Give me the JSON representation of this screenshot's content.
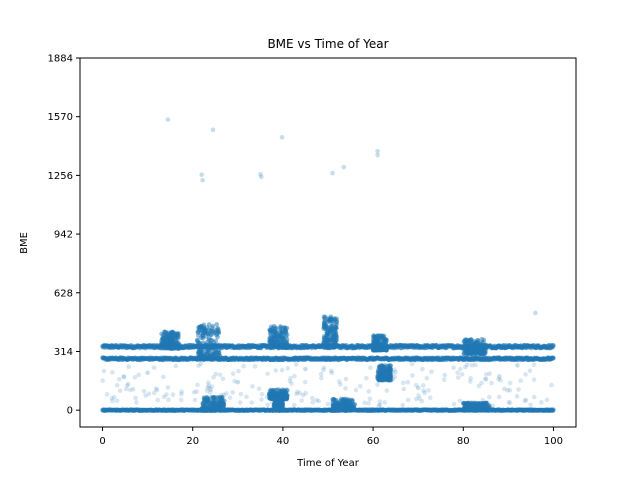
{
  "chart_data": {
    "type": "scatter",
    "title": "BME vs Time of Year",
    "xlabel": "Time of Year",
    "ylabel": "BME",
    "xlim": [
      -5,
      105
    ],
    "ylim": [
      -90,
      1884
    ],
    "xticks": [
      0,
      20,
      40,
      60,
      80,
      100
    ],
    "yticks": [
      0,
      314,
      628,
      942,
      1256,
      1570,
      1884
    ],
    "xtick_labels": [
      "0",
      "20",
      "40",
      "60",
      "80",
      "100"
    ],
    "ytick_labels": [
      "0",
      "314",
      "628",
      "942",
      "1256",
      "1570",
      "1884"
    ],
    "grid": false,
    "legend": "none",
    "marker_color": "#1f77b4",
    "bands": [
      {
        "name": "upper band",
        "y": 340,
        "x_range": [
          0,
          100
        ],
        "spread": 8
      },
      {
        "name": "middle band",
        "y": 275,
        "x_range": [
          0,
          100
        ],
        "spread": 6
      },
      {
        "name": "zero band",
        "y": 0,
        "x_range": [
          0,
          100
        ],
        "spread": 3
      }
    ],
    "clusters": [
      {
        "x_range": [
          13,
          17
        ],
        "y_range": [
          330,
          420
        ]
      },
      {
        "x_range": [
          21,
          26
        ],
        "y_range": [
          280,
          460
        ]
      },
      {
        "x_range": [
          22,
          27
        ],
        "y_range": [
          0,
          70
        ]
      },
      {
        "x_range": [
          37,
          41
        ],
        "y_range": [
          340,
          450
        ]
      },
      {
        "x_range": [
          37,
          41
        ],
        "y_range": [
          60,
          110
        ]
      },
      {
        "x_range": [
          38,
          40
        ],
        "y_range": [
          0,
          80
        ]
      },
      {
        "x_range": [
          49,
          52
        ],
        "y_range": [
          340,
          500
        ]
      },
      {
        "x_range": [
          51,
          56
        ],
        "y_range": [
          0,
          60
        ]
      },
      {
        "x_range": [
          60,
          63
        ],
        "y_range": [
          320,
          400
        ]
      },
      {
        "x_range": [
          61,
          64
        ],
        "y_range": [
          160,
          240
        ]
      },
      {
        "x_range": [
          80,
          86
        ],
        "y_range": [
          0,
          40
        ]
      },
      {
        "x_range": [
          80,
          85
        ],
        "y_range": [
          300,
          380
        ]
      }
    ],
    "points": [
      {
        "x": 14.5,
        "y": 1555
      },
      {
        "x": 24.5,
        "y": 1500
      },
      {
        "x": 39.8,
        "y": 1460
      },
      {
        "x": 22.0,
        "y": 1260
      },
      {
        "x": 22.2,
        "y": 1230
      },
      {
        "x": 35.0,
        "y": 1262
      },
      {
        "x": 35.2,
        "y": 1248
      },
      {
        "x": 51.0,
        "y": 1268
      },
      {
        "x": 53.5,
        "y": 1300
      },
      {
        "x": 61.0,
        "y": 1385
      },
      {
        "x": 61.0,
        "y": 1365
      },
      {
        "x": 96.0,
        "y": 520
      },
      {
        "x": 62.0,
        "y": 240
      },
      {
        "x": 62.5,
        "y": 165
      },
      {
        "x": 10.0,
        "y": 200
      },
      {
        "x": 30.0,
        "y": 150
      },
      {
        "x": 45.0,
        "y": 220
      },
      {
        "x": 70.0,
        "y": 120
      },
      {
        "x": 88.0,
        "y": 180
      },
      {
        "x": 92.0,
        "y": 240
      }
    ]
  }
}
